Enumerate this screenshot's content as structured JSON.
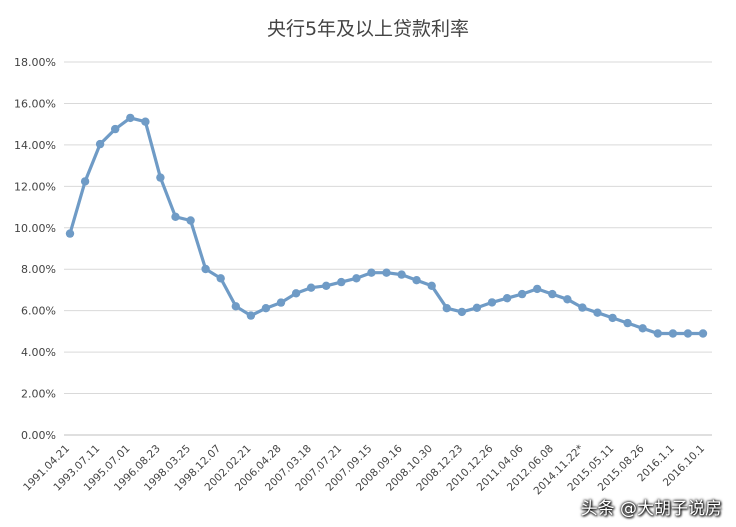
{
  "chart_data": {
    "type": "line",
    "title": "央行5年及以上贷款利率",
    "xlabel": "",
    "ylabel": "",
    "ylim": [
      0,
      18
    ],
    "y_ticks": [
      "0.00%",
      "2.00%",
      "4.00%",
      "6.00%",
      "8.00%",
      "10.00%",
      "12.00%",
      "14.00%",
      "16.00%",
      "18.00%"
    ],
    "grid": true,
    "legend": "none",
    "x_tick_labels": [
      "1991.04.21",
      "1993.07.11",
      "1995.07.01",
      "1996.08.23",
      "1998.03.25",
      "1998.12.07",
      "2002.02.21",
      "2006.04.28",
      "2007.03.18",
      "2007.07.21",
      "2007.09.15",
      "2008.09.16",
      "2008.10.30",
      "2008.12.23",
      "2010.12.26",
      "2011.04.06",
      "2012.06.08",
      "2014.11.22*",
      "2015.05.11",
      "2015.08.26",
      "2016.1.1",
      "2016.10.1"
    ],
    "series": [
      {
        "color": "#6f9bc6",
        "values": [
          9.72,
          12.24,
          14.04,
          14.76,
          15.3,
          15.12,
          12.42,
          10.53,
          10.35,
          8.01,
          7.56,
          6.21,
          5.76,
          6.12,
          6.39,
          6.84,
          7.11,
          7.2,
          7.38,
          7.56,
          7.83,
          7.83,
          7.74,
          7.47,
          7.2,
          6.12,
          5.94,
          6.14,
          6.4,
          6.6,
          6.8,
          7.05,
          6.8,
          6.55,
          6.15,
          5.9,
          5.65,
          5.4,
          5.15,
          4.9,
          4.9,
          4.9,
          4.9
        ]
      }
    ]
  },
  "watermark": "头条 @大胡子说房"
}
